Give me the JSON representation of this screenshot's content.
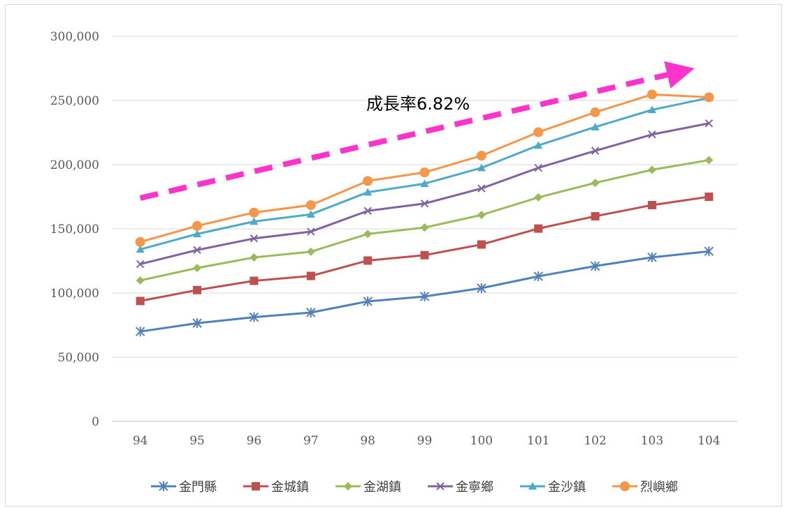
{
  "chart_data": {
    "type": "line",
    "title": "",
    "xlabel": "",
    "ylabel": "",
    "categories": [
      "94",
      "95",
      "96",
      "97",
      "98",
      "99",
      "100",
      "101",
      "102",
      "103",
      "104"
    ],
    "ylim": [
      0,
      300000
    ],
    "yticks": [
      0,
      50000,
      100000,
      150000,
      200000,
      250000,
      300000
    ],
    "ytick_labels": [
      "0",
      "50,000",
      "100,000",
      "150,000",
      "200,000",
      "250,000",
      "300,000"
    ],
    "grid": true,
    "legend_position": "bottom",
    "annotation": {
      "text": "成長率6.82%",
      "arrow_color": "#ff33cc",
      "arrow_style": "dashed",
      "arrow_from": {
        "x": "94",
        "y": 174000
      },
      "arrow_to": {
        "x": "104",
        "y": 272000
      }
    },
    "series": [
      {
        "name": "金門縣",
        "color": "#4f81bd",
        "marker": "asterisk",
        "values": [
          70000,
          76500,
          81200,
          84800,
          93500,
          97300,
          103800,
          113000,
          121000,
          127800,
          132500
        ]
      },
      {
        "name": "金城鎮",
        "color": "#c0504d",
        "marker": "square",
        "values": [
          93800,
          102300,
          109500,
          113300,
          125300,
          129500,
          137800,
          150200,
          159800,
          168500,
          175000
        ]
      },
      {
        "name": "金湖鎮",
        "color": "#9bbb59",
        "marker": "diamond",
        "values": [
          109800,
          119500,
          127700,
          132200,
          146000,
          151000,
          160800,
          174500,
          185800,
          196000,
          203500
        ]
      },
      {
        "name": "金寧鄉",
        "color": "#8064a2",
        "marker": "x",
        "values": [
          122500,
          133500,
          142500,
          147800,
          164000,
          169700,
          181500,
          197500,
          210800,
          223500,
          232200
        ]
      },
      {
        "name": "金沙鎮",
        "color": "#4bacc6",
        "marker": "triangle",
        "values": [
          134000,
          146000,
          155700,
          161300,
          178500,
          185200,
          197500,
          215000,
          229300,
          242700,
          252000
        ]
      },
      {
        "name": "烈嶼鄉",
        "color": "#f79646",
        "marker": "circle",
        "values": [
          139800,
          152300,
          162700,
          168500,
          187300,
          194000,
          207000,
          225300,
          240800,
          254700,
          252500
        ]
      }
    ]
  }
}
